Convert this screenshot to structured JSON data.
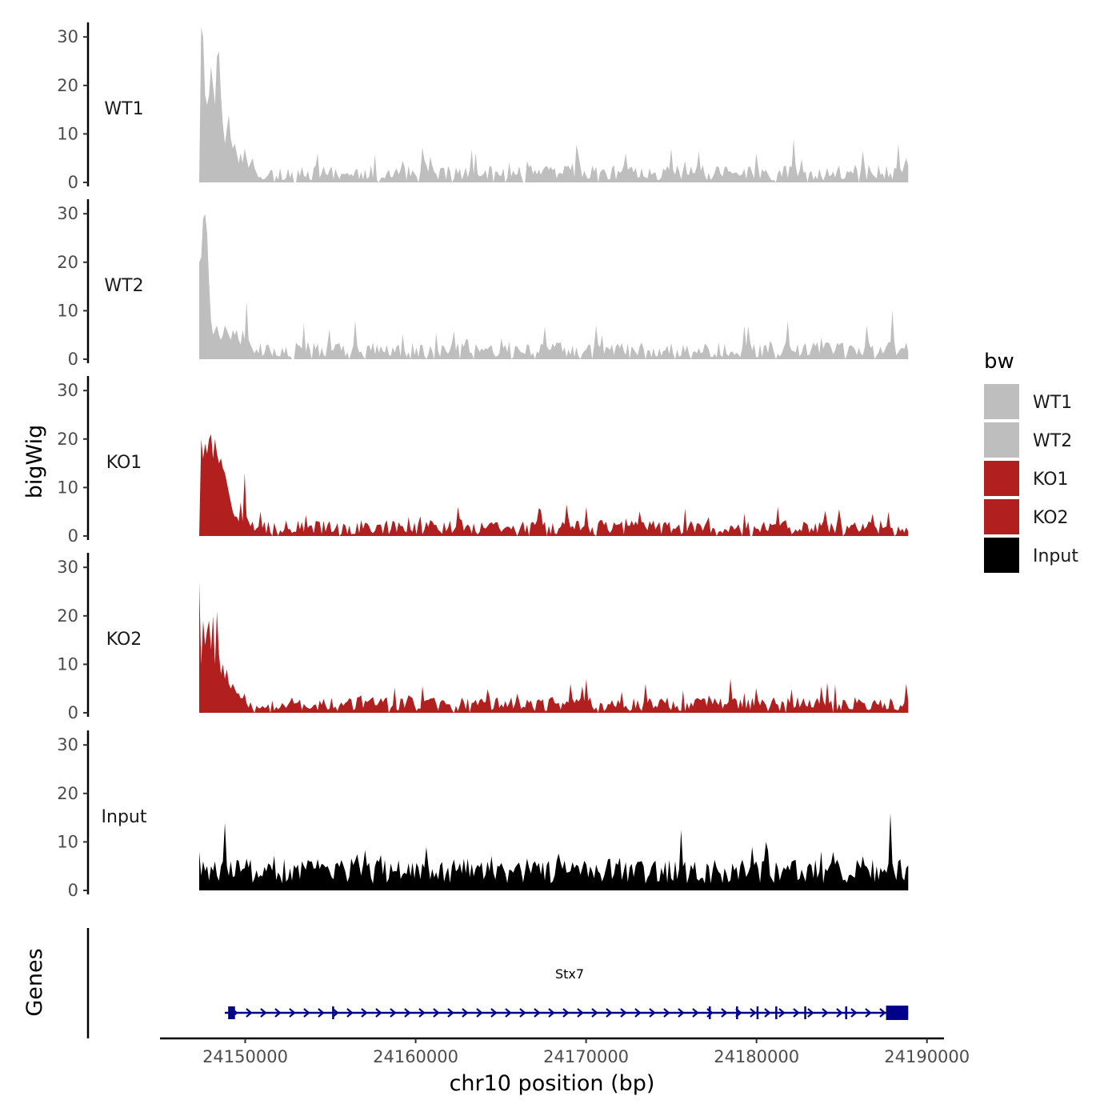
{
  "chart_data": {
    "type": "area",
    "ylabel": "bigWig",
    "xlabel": "chr10 position (bp)",
    "region": {
      "start": 24147300,
      "end": 24188900
    },
    "xlim": [
      24145000,
      24191000
    ],
    "x_ticks": [
      24150000,
      24160000,
      24170000,
      24180000,
      24190000
    ],
    "x_tick_labels": [
      "24150000",
      "24160000",
      "24170000",
      "24180000",
      "24190000"
    ],
    "ylim": [
      0,
      33
    ],
    "y_ticks": [
      0,
      10,
      20,
      30
    ],
    "y_tick_labels": [
      "0",
      "10",
      "20",
      "30"
    ],
    "legend": {
      "title": "bw",
      "position": "right",
      "entries": [
        {
          "label": "WT1",
          "color": "#BEBEBE"
        },
        {
          "label": "WT2",
          "color": "#BEBEBE"
        },
        {
          "label": "KO1",
          "color": "#B21F1F"
        },
        {
          "label": "KO2",
          "color": "#B21F1F"
        },
        {
          "label": "Input",
          "color": "#000000"
        }
      ]
    },
    "series": [
      {
        "name": "WT1",
        "color": "#BEBEBE",
        "head": [
          0,
          32,
          30,
          18,
          16,
          18,
          24,
          20,
          16,
          26,
          27,
          18,
          12,
          8,
          11,
          14,
          9,
          7,
          8,
          6,
          4,
          6,
          4,
          7,
          5,
          3,
          4,
          5,
          3,
          2,
          1
        ],
        "base": 2.0,
        "noise": 1.6,
        "peak_chance": 0.1,
        "peak_height": 4.5,
        "gap_chance": 0.05,
        "seed": 11,
        "peaks": [
          [
            24172300,
            6
          ],
          [
            24175000,
            7
          ],
          [
            24182200,
            9
          ],
          [
            24186200,
            6.5
          ],
          [
            24188300,
            8
          ],
          [
            24188800,
            5
          ]
        ]
      },
      {
        "name": "WT2",
        "color": "#BEBEBE",
        "head": [
          20,
          21,
          29,
          30,
          26,
          16,
          8,
          5,
          6,
          7,
          5,
          4,
          5,
          7,
          6,
          5,
          4,
          6,
          5,
          6,
          4,
          3,
          6,
          4,
          12,
          4,
          3,
          2
        ],
        "base": 2.0,
        "noise": 1.6,
        "peak_chance": 0.08,
        "peak_height": 4,
        "gap_chance": 0.05,
        "seed": 23,
        "peaks": [
          [
            24156500,
            8
          ],
          [
            24179300,
            7
          ],
          [
            24181800,
            8
          ],
          [
            24186500,
            7
          ],
          [
            24188000,
            10
          ]
        ]
      },
      {
        "name": "KO1",
        "color": "#B21F1F",
        "head": [
          0,
          20,
          16,
          19,
          17,
          20,
          21,
          16,
          20,
          17,
          15,
          16,
          14,
          13,
          11,
          9,
          7,
          5,
          4,
          4,
          3,
          7,
          3,
          13,
          4,
          3,
          2,
          3
        ],
        "base": 1.8,
        "noise": 1.5,
        "peak_chance": 0.1,
        "peak_height": 4,
        "gap_chance": 0.04,
        "seed": 37,
        "peaks": [
          [
            24168800,
            6.5
          ],
          [
            24170000,
            6
          ],
          [
            24181200,
            6
          ],
          [
            24187700,
            5
          ]
        ]
      },
      {
        "name": "KO2",
        "color": "#B21F1F",
        "head": [
          27,
          10,
          19,
          14,
          17,
          19,
          13,
          20,
          10,
          21,
          12,
          8,
          10,
          7,
          9,
          6,
          5,
          6,
          5,
          4,
          4,
          3,
          3,
          4,
          2
        ],
        "base": 1.8,
        "noise": 1.5,
        "peak_chance": 0.08,
        "peak_height": 4,
        "gap_chance": 0.04,
        "seed": 53,
        "peaks": [
          [
            24169100,
            6
          ],
          [
            24170000,
            7
          ],
          [
            24173500,
            6
          ],
          [
            24188800,
            6
          ]
        ]
      },
      {
        "name": "Input",
        "color": "#000000",
        "head": [
          8,
          3,
          6,
          4,
          5,
          2,
          5,
          4,
          6,
          3,
          2,
          5,
          6,
          14,
          5,
          3,
          6
        ],
        "base": 4.0,
        "noise": 2.6,
        "peak_chance": 0.1,
        "peak_height": 3.5,
        "gap_chance": 0.0,
        "seed": 71,
        "peaks": [
          [
            24175600,
            12.5
          ],
          [
            24179800,
            9
          ],
          [
            24180500,
            10
          ],
          [
            24187800,
            16
          ],
          [
            24188300,
            6
          ]
        ]
      }
    ],
    "genes_panel": {
      "label": "Genes",
      "gene": "Stx7",
      "color": "#00008B",
      "start": 24148800,
      "end": 24188900,
      "exons": [
        [
          24149000,
          24149400
        ],
        [
          24155100,
          24155200
        ],
        [
          24177200,
          24177300
        ],
        [
          24178800,
          24178900
        ],
        [
          24180000,
          24180100
        ],
        [
          24181100,
          24181200
        ],
        [
          24182800,
          24182900
        ],
        [
          24185200,
          24185300
        ],
        [
          24187600,
          24188900
        ]
      ]
    }
  }
}
